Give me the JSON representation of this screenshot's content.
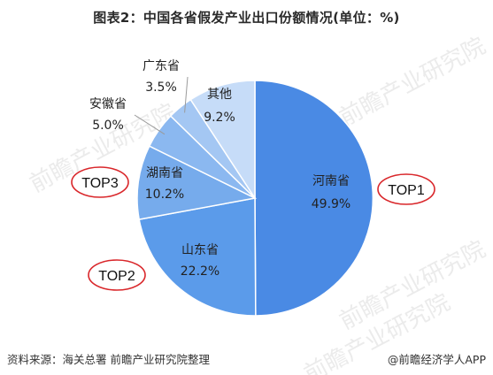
{
  "title": "图表2：中国各省假发产业出口份额情况(单位：%)",
  "chart_data": {
    "type": "pie",
    "title": "图表2：中国各省假发产业出口份额情况(单位：%)",
    "unit": "%",
    "slices": [
      {
        "name": "河南省",
        "value": 49.9,
        "label": "49.9%",
        "color": "#4a8ae4",
        "rank": "TOP1"
      },
      {
        "name": "山东省",
        "value": 22.2,
        "label": "22.2%",
        "color": "#5b9bea",
        "rank": "TOP2"
      },
      {
        "name": "湖南省",
        "value": 10.2,
        "label": "10.2%",
        "color": "#76abec",
        "rank": "TOP3"
      },
      {
        "name": "安徽省",
        "value": 5.0,
        "label": "5.0%",
        "color": "#8bb8f0"
      },
      {
        "name": "广东省",
        "value": 3.5,
        "label": "3.5%",
        "color": "#a4c7f3"
      },
      {
        "name": "其他",
        "value": 9.2,
        "label": "9.2%",
        "color": "#c6dcf8"
      }
    ],
    "legend": "none"
  },
  "colors": {
    "rank_ellipse": "#d9262a"
  },
  "watermark": "前瞻产业研究院",
  "footer": {
    "source": "资料来源：海关总署 前瞻产业研究院整理",
    "brand": "@前瞻经济学人APP"
  }
}
